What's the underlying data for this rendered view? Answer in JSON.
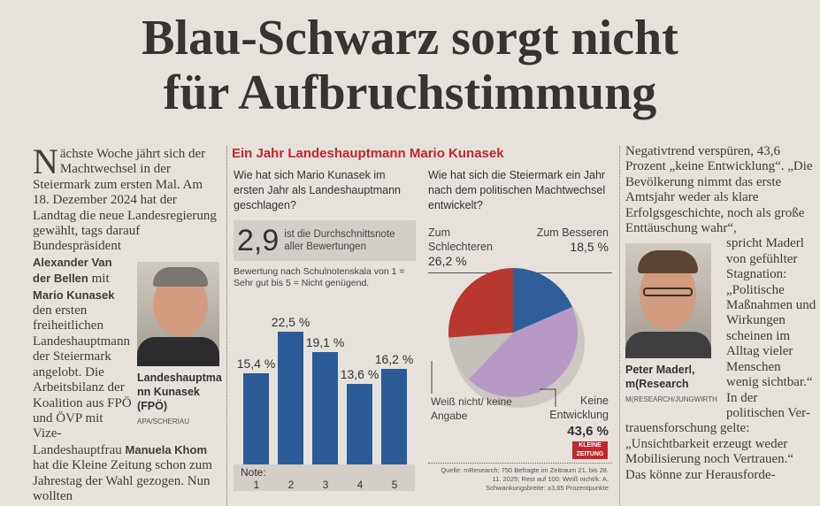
{
  "headline": {
    "line1": "Blau-Schwarz sorgt nicht",
    "line2": "für Aufbruchstimmung"
  },
  "article": {
    "col1": {
      "intro_initial": "N",
      "intro_rest": "ächste Woche jährt sich der Machtwechsel in der Steiermark zum ersten Mal. Am 18. Dezember 2024 hat der Landtag die neue Landesregierung gewählt, tags darauf Bundespräsident",
      "name1": "Alexander Van der Bellen",
      "mit": "mit",
      "name2": "Mario Kunasek",
      "text2": "den ersten freiheitlichen Landeshauptmann der Steiermark angelobt. Die Arbeitsbilanz der Koalition aus FPÖ und",
      "text3": "ÖVP mit Vize-Landeshauptfrau",
      "name3": "Manuela Khom",
      "text4": "hat die Kleine Zeitung schon zum Jahrestag der Wahl gezogen. Nun wollten",
      "photo_caption": "Landeshauptmann Kunasek (FPÖ)",
      "photo_credit": "APA/SCHERIAU"
    },
    "col4": {
      "text1": "Negativtrend verspüren, 43,6 Prozent „keine Entwicklung“. „Die Bevölkerung nimmt das erste Amtsjahr weder als klare Erfolgsgeschichte, noch als große Enttäuschung wahr“,",
      "text2": "spricht Maderl von gefühlter Stagnation: „Politische Maßnahmen und Wirkungen scheinen im Alltag vieler Menschen wenig sichtbar.“ In der politischen Ver-",
      "text3": "trauensforschung gelte: „Unsichtbarkeit erzeugt weder Mobilisierung noch Vertrauen.“ Das könne zur Herausforde-",
      "photo_caption": "Peter Maderl, m(Research",
      "photo_credit": "M(RESEARCH/JUNGWIRTH"
    }
  },
  "infographic": {
    "title": "Ein Jahr Landeshauptmann Mario Kunasek",
    "accent": "#c0282d",
    "source": "Quelle: mResearch; 750 Befragte im Zeitraum 21. bis 28. 11. 2025; Rest auf 100: Weiß nicht/k. A. Schwankungsbreite: ±3,65 Prozentpunkte",
    "logo": "KLEINE ZEITUNG"
  },
  "chart_data": [
    {
      "type": "bar",
      "title": "Wie hat sich Mario Kunasek im ersten Jahr als Landeshauptmann geschlagen?",
      "average_value": "2,9",
      "average_text": "ist die Durchschnittsnote aller Bewertungen",
      "subtitle": "Bewertung nach Schulnotenskala von 1 = Sehr gut bis 5 = Nicht genügend.",
      "xlabel": "Note:",
      "categories": [
        "1",
        "2",
        "3",
        "4",
        "5"
      ],
      "values": [
        15.4,
        22.5,
        19.1,
        13.6,
        16.2
      ],
      "labels": [
        "15,4 %",
        "22,5 %",
        "19,1 %",
        "13,6 %",
        "16,2 %"
      ],
      "color": "#2b5b97"
    },
    {
      "type": "pie",
      "title": "Wie hat sich die Steiermark ein Jahr nach dem politischen Machtwechsel entwickelt?",
      "slices": [
        {
          "name": "Zum Besseren",
          "value": 18.5,
          "label": "18,5 %",
          "color": "#2f5f9a"
        },
        {
          "name": "Keine Entwicklung",
          "value": 43.6,
          "label": "43,6 %",
          "color": "#b79ac4"
        },
        {
          "name": "Weiß nicht/ keine Angabe",
          "value": 11.7,
          "label": "",
          "color": "#c4bfb9"
        },
        {
          "name": "Zum Schlechteren",
          "value": 26.2,
          "label": "26,2 %",
          "color": "#b8382e"
        }
      ]
    }
  ]
}
